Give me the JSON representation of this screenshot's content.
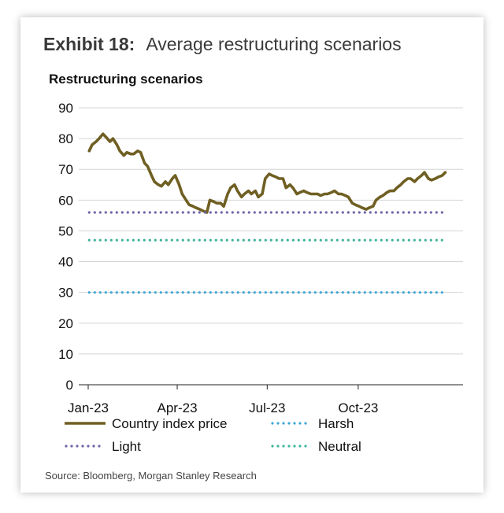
{
  "exhibit": {
    "label": "Exhibit 18:",
    "title": "Average restructuring scenarios"
  },
  "source": "Source: Bloomberg, Morgan Stanley Research",
  "chart_data": {
    "type": "line",
    "title": "Restructuring scenarios",
    "xlabel": "",
    "ylabel": "",
    "ylim": [
      0,
      90
    ],
    "yticks": [
      0,
      10,
      20,
      30,
      40,
      50,
      60,
      70,
      80,
      90
    ],
    "xticks": [
      "Jan-23",
      "Apr-23",
      "Jul-23",
      "Oct-23"
    ],
    "grid": true,
    "legend_position": "bottom",
    "series": [
      {
        "name": "Country index price",
        "style": "solid",
        "color": "#6f5f22",
        "x": [
          "2023-01-02",
          "2023-01-05",
          "2023-01-09",
          "2023-01-12",
          "2023-01-16",
          "2023-01-19",
          "2023-01-23",
          "2023-01-26",
          "2023-01-30",
          "2023-02-02",
          "2023-02-06",
          "2023-02-09",
          "2023-02-13",
          "2023-02-16",
          "2023-02-20",
          "2023-02-23",
          "2023-02-27",
          "2023-03-02",
          "2023-03-06",
          "2023-03-09",
          "2023-03-13",
          "2023-03-16",
          "2023-03-20",
          "2023-03-23",
          "2023-03-27",
          "2023-03-30",
          "2023-04-03",
          "2023-04-06",
          "2023-04-10",
          "2023-04-13",
          "2023-04-17",
          "2023-04-20",
          "2023-04-24",
          "2023-04-27",
          "2023-05-01",
          "2023-05-04",
          "2023-05-08",
          "2023-05-11",
          "2023-05-15",
          "2023-05-18",
          "2023-05-22",
          "2023-05-25",
          "2023-05-29",
          "2023-06-01",
          "2023-06-05",
          "2023-06-08",
          "2023-06-12",
          "2023-06-15",
          "2023-06-19",
          "2023-06-22",
          "2023-06-26",
          "2023-06-29",
          "2023-07-03",
          "2023-07-06",
          "2023-07-10",
          "2023-07-13",
          "2023-07-17",
          "2023-07-20",
          "2023-07-24",
          "2023-07-27",
          "2023-07-31",
          "2023-08-03",
          "2023-08-07",
          "2023-08-10",
          "2023-08-14",
          "2023-08-17",
          "2023-08-21",
          "2023-08-24",
          "2023-08-28",
          "2023-08-31",
          "2023-09-04",
          "2023-09-07",
          "2023-09-11",
          "2023-09-14",
          "2023-09-18",
          "2023-09-21",
          "2023-09-25",
          "2023-09-28",
          "2023-10-02",
          "2023-10-05",
          "2023-10-09",
          "2023-10-12",
          "2023-10-16",
          "2023-10-19",
          "2023-10-23",
          "2023-10-26",
          "2023-10-30",
          "2023-11-02",
          "2023-11-06",
          "2023-11-09",
          "2023-11-13",
          "2023-11-16",
          "2023-11-20",
          "2023-11-23",
          "2023-11-27",
          "2023-11-30",
          "2023-12-04",
          "2023-12-07",
          "2023-12-11",
          "2023-12-14",
          "2023-12-18",
          "2023-12-21",
          "2023-12-25",
          "2023-12-28"
        ],
        "values": [
          76,
          78,
          79,
          80,
          81.5,
          80.5,
          79,
          80,
          78,
          76,
          74.5,
          75.5,
          75,
          75,
          76,
          75.5,
          72,
          71,
          68,
          66,
          65,
          64.5,
          66,
          65,
          67,
          68,
          65,
          62,
          60,
          58.5,
          58,
          57.5,
          57,
          56.5,
          56,
          60,
          59.5,
          59,
          59,
          58,
          62,
          64,
          65,
          63,
          61,
          62,
          63,
          62,
          63,
          61,
          62,
          67,
          68.5,
          68,
          67.5,
          67,
          67,
          64,
          65,
          64,
          62,
          62.5,
          63,
          62.5,
          62,
          62,
          62,
          61.5,
          62,
          62,
          62.5,
          63,
          62,
          62,
          61.5,
          61,
          59,
          58.5,
          58,
          57.5,
          57,
          57.5,
          58,
          60,
          61,
          61.5,
          62.5,
          63,
          63,
          64,
          65,
          66,
          67,
          67,
          66,
          67,
          68,
          69,
          67,
          66.5,
          67,
          67.5,
          68,
          69
        ]
      },
      {
        "name": "Harsh",
        "style": "dotted",
        "color": "#3fa7d8",
        "x": [
          "2023-01-02",
          "2023-12-28"
        ],
        "values": [
          30,
          30
        ]
      },
      {
        "name": "Light",
        "style": "dotted",
        "color": "#6f63a8",
        "x": [
          "2023-01-02",
          "2023-12-28"
        ],
        "values": [
          56,
          56
        ]
      },
      {
        "name": "Neutral",
        "style": "dotted",
        "color": "#3fb39a",
        "x": [
          "2023-01-02",
          "2023-12-28"
        ],
        "values": [
          47,
          47
        ]
      }
    ]
  }
}
